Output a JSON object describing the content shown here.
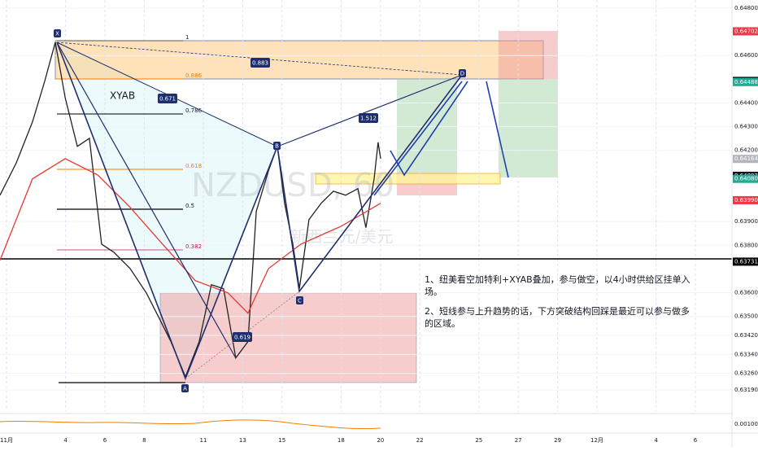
{
  "chart_data": {
    "type": "line",
    "xlim": [
      0.67,
      37.86
    ],
    "ylim": [
      0.63101,
      0.64834
    ],
    "grid": true,
    "xticks": [
      {
        "value": 1,
        "label": "11月"
      },
      4,
      6,
      8,
      11,
      13,
      15,
      18,
      20,
      22,
      25,
      27,
      29,
      {
        "value": 31,
        "label": "12月"
      },
      {
        "value": 34,
        "label": "4"
      },
      {
        "value": 36,
        "label": "6"
      }
    ],
    "yticks": [
      {
        "value": 0.648,
        "label": "0.64800"
      },
      {
        "value": 0.646,
        "label": "0.64600"
      },
      {
        "value": 0.644,
        "label": "0.64400"
      },
      {
        "value": 0.643,
        "label": "0.64300"
      },
      {
        "value": 0.642,
        "label": "0.64200"
      },
      {
        "value": 0.639,
        "label": "0.63900"
      },
      {
        "value": 0.638,
        "label": "0.63800"
      },
      {
        "value": 0.636,
        "label": "0.63600"
      },
      {
        "value": 0.635,
        "label": "0.63500"
      },
      {
        "value": 0.6342,
        "label": "0.63420"
      },
      {
        "value": 0.6334,
        "label": "0.63340"
      },
      {
        "value": 0.6326,
        "label": "0.63260"
      },
      {
        "value": 0.6319,
        "label": "0.63190"
      }
    ],
    "price_markers": [
      {
        "value": 0.64702,
        "label": "0.64702",
        "color": "#f23645"
      },
      {
        "value": 0.64493,
        "label": "0.64493",
        "color": "#131722"
      },
      {
        "value": 0.64488,
        "label": "0.64488",
        "color": "#22ab94"
      },
      {
        "value": 0.64164,
        "label": "0.64164",
        "color": "#b2b5be"
      },
      {
        "value": 0.64093,
        "label": "0.64093",
        "color": "#131722"
      },
      {
        "value": 0.6408,
        "label": "0.64080",
        "color": "#22ab94"
      },
      {
        "value": 0.6399,
        "label": "0.63990",
        "color": "#f23645"
      },
      {
        "value": 0.63731,
        "label": "0.63731",
        "color": "#000000"
      }
    ],
    "series": [
      {
        "color": "#222222",
        "x": [
          0.67,
          1.5,
          2.32,
          2.94,
          3.48,
          3.98,
          4.6,
          5.21,
          5.83,
          6.45,
          7.28,
          8.11,
          8.73,
          9.35,
          10.09,
          10.79,
          11.41,
          12.03,
          12.65,
          13.27,
          13.69,
          14.31,
          14.76,
          15.13,
          15.55,
          15.88,
          16.37,
          16.99,
          17.61,
          18.23,
          18.85,
          19.26,
          19.68,
          19.88,
          20.01
        ],
        "values": [
          0.64011,
          0.64148,
          0.6432,
          0.64491,
          0.64656,
          0.64423,
          0.64217,
          0.64251,
          0.63805,
          0.63771,
          0.63702,
          0.63599,
          0.63497,
          0.63394,
          0.63246,
          0.63394,
          0.63634,
          0.63617,
          0.63325,
          0.63394,
          0.63943,
          0.64114,
          0.64217,
          0.63977,
          0.63805,
          0.63617,
          0.63908,
          0.63977,
          0.64028,
          0.64011,
          0.64039,
          0.63874,
          0.6408,
          0.64234,
          0.64165
        ]
      },
      {
        "color": "#e53935",
        "x": [
          0.67,
          2.32,
          3.98,
          5.63,
          7.28,
          8.93,
          10.59,
          12.24,
          13.27,
          14.31,
          15.96,
          18.02,
          20.01
        ],
        "values": [
          0.63737,
          0.6408,
          0.64165,
          0.64097,
          0.6396,
          0.63805,
          0.63651,
          0.636,
          0.63514,
          0.63702,
          0.63805,
          0.63881,
          0.63977
        ]
      }
    ],
    "annotations": {
      "points": [
        "X",
        "A",
        "B",
        "C",
        "D"
      ],
      "pattern": "XYAB",
      "ratios": [
        "0.883",
        "0.671",
        "1.512",
        "0.619"
      ],
      "fib_levels": [
        "1",
        "0.886",
        "0.786",
        "0.618",
        "0.5",
        "0.382"
      ],
      "watermark": "NZDUSD, 60",
      "watermark_sub": "新西兰元/美元",
      "indicator_label": "0.00100",
      "notes": [
        "1、纽美看空加特利+XYAB叠加，参与做空，以4小时供给区挂单入场。",
        "2、短线参与上升趋势的话，下方突破结构回踩是最近可以参与做多的区域。"
      ]
    }
  }
}
